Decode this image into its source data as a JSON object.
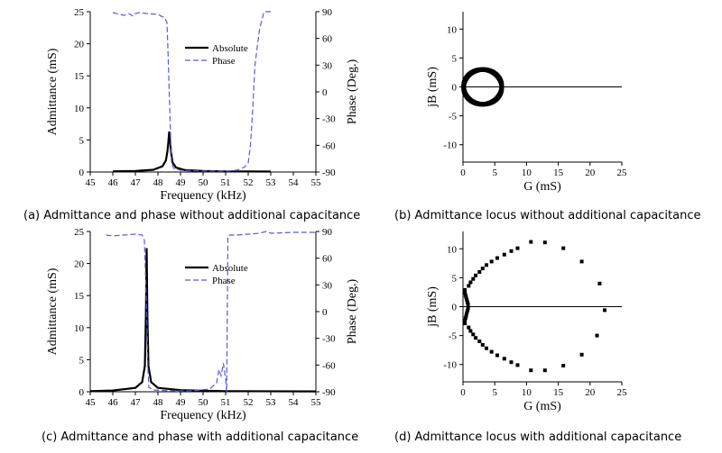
{
  "captions": {
    "a": "(a) Admittance and phase without additional capacitance",
    "b": "(b) Admittance locus without additional capacitance",
    "c": "(c) Admittance and phase with additional capacitance",
    "d": "(d) Admittance locus with additional capacitance"
  },
  "colors": {
    "absolute": "#000000",
    "phase": "#5a5ad8",
    "axis": "#000000"
  },
  "chart_data": [
    {
      "id": "a",
      "type": "line",
      "xlabel": "Frequency (kHz)",
      "ylabel": "Admittance (mS)",
      "y2label": "Phase (Deg.)",
      "xlim": [
        45,
        55
      ],
      "ylim": [
        0,
        25
      ],
      "y2lim": [
        -90,
        90
      ],
      "xticks": [
        "45",
        "46",
        "47",
        "48",
        "49",
        "50",
        "51",
        "52",
        "53",
        "54",
        "55"
      ],
      "yticks": [
        "0",
        "5",
        "10",
        "15",
        "20",
        "25"
      ],
      "y2ticks": [
        "-90",
        "-60",
        "-30",
        "0",
        "30",
        "60",
        "90"
      ],
      "legend": {
        "position": "top-center",
        "entries": [
          "Absolute",
          "Phase"
        ]
      },
      "series": [
        {
          "name": "Absolute",
          "axis": "left",
          "style": "solid",
          "x": [
            46.0,
            47.0,
            47.8,
            48.2,
            48.35,
            48.42,
            48.46,
            48.5,
            48.54,
            48.58,
            48.65,
            48.8,
            49.2,
            50.0,
            51.0,
            52.0,
            53.0
          ],
          "y": [
            0.1,
            0.15,
            0.35,
            0.9,
            1.8,
            3.2,
            4.6,
            6.3,
            4.8,
            3.1,
            1.5,
            0.7,
            0.3,
            0.15,
            0.1,
            0.08,
            0.07
          ]
        },
        {
          "name": "Phase",
          "axis": "right",
          "style": "dashed",
          "x": [
            46.0,
            46.3,
            46.5,
            46.7,
            46.9,
            47.0,
            47.2,
            47.5,
            48.0,
            48.3,
            48.4,
            48.45,
            48.5,
            48.55,
            48.6,
            48.7,
            49.0,
            50.0,
            51.0,
            51.5,
            51.8,
            52.0,
            52.1,
            52.2,
            52.3,
            52.5,
            52.7,
            53.0
          ],
          "y": [
            89,
            87,
            86,
            88,
            85,
            88,
            89,
            88,
            87,
            83,
            78,
            40,
            0,
            -40,
            -80,
            -86,
            -88,
            -89,
            -89,
            -88,
            -85,
            -80,
            -60,
            -20,
            30,
            70,
            90,
            90
          ]
        }
      ]
    },
    {
      "id": "b",
      "type": "scatter",
      "xlabel": "G (mS)",
      "ylabel": "jB (mS)",
      "xlim": [
        0,
        25
      ],
      "ylim": [
        -13,
        13
      ],
      "xticks": [
        "0",
        "5",
        "10",
        "15",
        "20",
        "25"
      ],
      "yticks": [
        "-10",
        "-5",
        "0",
        "5",
        "10"
      ],
      "circle": {
        "center": [
          3.1,
          0
        ],
        "radius": 3.0
      }
    },
    {
      "id": "c",
      "type": "line",
      "xlabel": "Frequency (kHz)",
      "ylabel": "Admittance (mS)",
      "y2label": "Phase (Deg.)",
      "xlim": [
        45,
        55
      ],
      "ylim": [
        0,
        25
      ],
      "y2lim": [
        -90,
        90
      ],
      "xticks": [
        "45",
        "46",
        "47",
        "48",
        "49",
        "50",
        "51",
        "52",
        "53",
        "54",
        "55"
      ],
      "yticks": [
        "0",
        "5",
        "10",
        "15",
        "20",
        "25"
      ],
      "y2ticks": [
        "-90",
        "-60",
        "-30",
        "0",
        "30",
        "60",
        "90"
      ],
      "legend": {
        "position": "top-center",
        "entries": [
          "Absolute",
          "Phase"
        ]
      },
      "series": [
        {
          "name": "Absolute",
          "axis": "left",
          "style": "solid",
          "x": [
            45.0,
            46.0,
            47.0,
            47.3,
            47.42,
            47.47,
            47.5,
            47.53,
            47.58,
            47.7,
            48.0,
            49.0,
            50.0,
            51.0,
            55.0
          ],
          "y": [
            0.1,
            0.2,
            0.6,
            1.5,
            4.0,
            12.0,
            22.4,
            12.0,
            4.0,
            1.5,
            0.6,
            0.25,
            0.15,
            0.1,
            0.05
          ]
        },
        {
          "name": "Phase",
          "axis": "right",
          "style": "dashed",
          "x": [
            45.7,
            46.0,
            46.5,
            47.0,
            47.3,
            47.4,
            47.45,
            47.5,
            47.55,
            47.6,
            47.8,
            48.5,
            49.5,
            50.3,
            50.6,
            50.7,
            50.8,
            50.9,
            51.0,
            51.05,
            51.1,
            51.2,
            51.5,
            52.0,
            52.5,
            52.8,
            53.0,
            54.0,
            55.0
          ],
          "y": [
            86,
            85,
            86,
            87,
            86,
            80,
            40,
            0,
            -60,
            -85,
            -88,
            -89,
            -89,
            -87,
            -80,
            -65,
            -72,
            -58,
            -75,
            -90,
            85,
            86,
            86,
            87,
            88,
            90,
            88,
            89,
            89
          ]
        }
      ]
    },
    {
      "id": "d",
      "type": "scatter",
      "xlabel": "G (mS)",
      "ylabel": "jB (mS)",
      "xlim": [
        0,
        25
      ],
      "ylim": [
        -13,
        13
      ],
      "xticks": [
        "0",
        "5",
        "10",
        "15",
        "20",
        "25"
      ],
      "yticks": [
        "-10",
        "-5",
        "0",
        "5",
        "10"
      ],
      "points": [
        [
          0.3,
          2.9
        ],
        [
          0.3,
          2.4
        ],
        [
          0.4,
          2.0
        ],
        [
          0.5,
          1.6
        ],
        [
          0.6,
          1.2
        ],
        [
          0.7,
          0.8
        ],
        [
          0.8,
          0.4
        ],
        [
          0.8,
          -0.3
        ],
        [
          0.7,
          -0.7
        ],
        [
          0.6,
          -1.1
        ],
        [
          0.5,
          -1.6
        ],
        [
          0.4,
          -2.0
        ],
        [
          0.3,
          -2.4
        ],
        [
          0.3,
          -2.9
        ],
        [
          0.9,
          3.6
        ],
        [
          1.2,
          4.2
        ],
        [
          1.6,
          4.8
        ],
        [
          2.0,
          5.4
        ],
        [
          2.6,
          6.0
        ],
        [
          3.1,
          6.6
        ],
        [
          3.7,
          7.2
        ],
        [
          4.5,
          7.8
        ],
        [
          5.4,
          8.4
        ],
        [
          6.5,
          9.0
        ],
        [
          7.6,
          9.6
        ],
        [
          8.6,
          10.1
        ],
        [
          10.7,
          11.2
        ],
        [
          12.9,
          11.1
        ],
        [
          15.8,
          10.1
        ],
        [
          18.7,
          7.8
        ],
        [
          21.5,
          4.0
        ],
        [
          22.3,
          -0.6
        ],
        [
          0.9,
          -3.6
        ],
        [
          1.2,
          -4.2
        ],
        [
          1.6,
          -4.8
        ],
        [
          2.0,
          -5.4
        ],
        [
          2.6,
          -6.0
        ],
        [
          3.1,
          -6.6
        ],
        [
          3.7,
          -7.2
        ],
        [
          4.5,
          -7.8
        ],
        [
          5.4,
          -8.4
        ],
        [
          6.5,
          -9.0
        ],
        [
          7.6,
          -9.6
        ],
        [
          8.6,
          -10.1
        ],
        [
          10.7,
          -11.0
        ],
        [
          12.9,
          -11.0
        ],
        [
          15.8,
          -10.2
        ],
        [
          18.7,
          -8.3
        ],
        [
          21.1,
          -5.0
        ]
      ]
    }
  ]
}
